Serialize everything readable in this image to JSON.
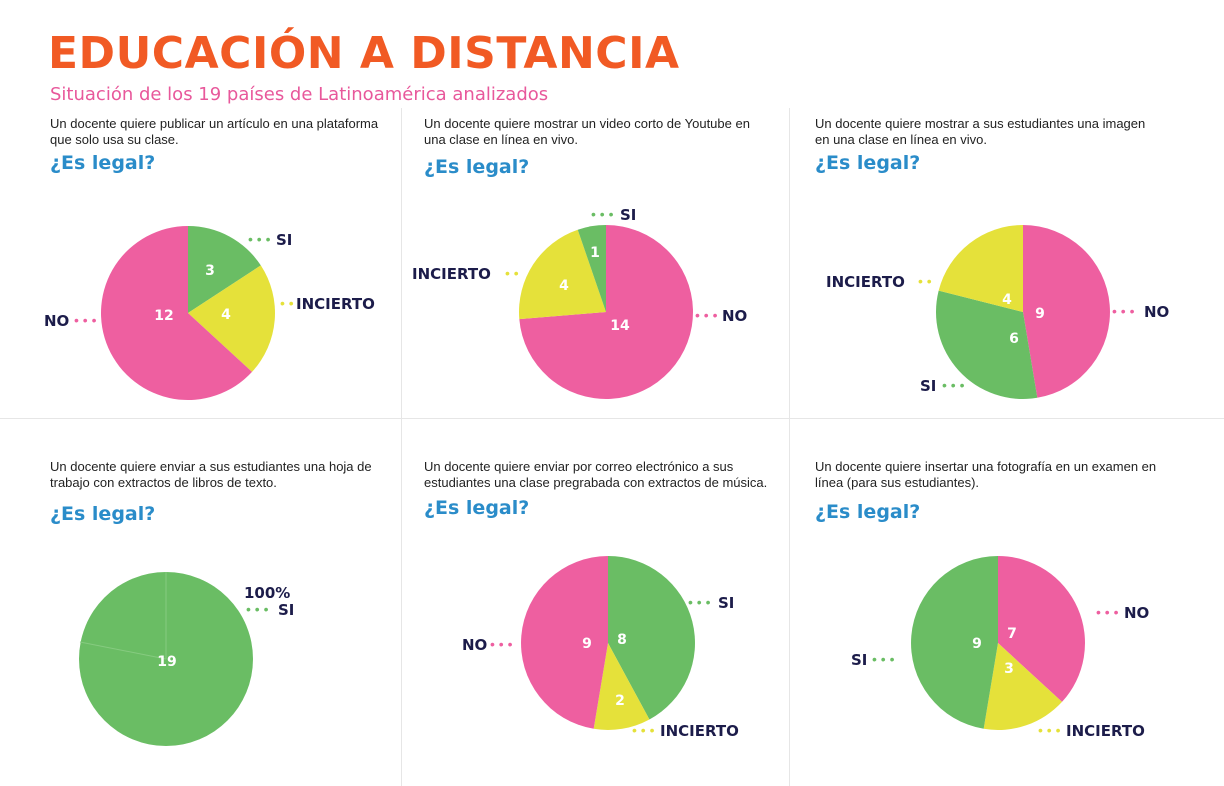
{
  "title": "EDUCACIÓN A DISTANCIA",
  "subtitle": "Situación de los 19 países de Latinoamérica analizados",
  "legal_label": "¿Es legal?",
  "colors": {
    "SI": "#6abd64",
    "NO": "#ee5fa0",
    "INCIERTO": "#e5e13a",
    "title": "#f15a24",
    "subtitle": "#e8589b",
    "question_heading": "#2a8cc9"
  },
  "chart_data": [
    {
      "type": "pie",
      "question": "Un docente quiere publicar un artículo en una plataforma que solo usa su clase.",
      "slices": [
        {
          "label": "SI",
          "value": 3
        },
        {
          "label": "INCIERTO",
          "value": 4
        },
        {
          "label": "NO",
          "value": 12
        }
      ]
    },
    {
      "type": "pie",
      "question": "Un docente quiere mostrar un video corto de Youtube en una clase en línea en vivo.",
      "slices": [
        {
          "label": "NO",
          "value": 14
        },
        {
          "label": "INCIERTO",
          "value": 4
        },
        {
          "label": "SI",
          "value": 1
        }
      ]
    },
    {
      "type": "pie",
      "question": "Un docente quiere mostrar a sus estudiantes una imagen en una clase en línea en vivo.",
      "slices": [
        {
          "label": "NO",
          "value": 9
        },
        {
          "label": "SI",
          "value": 6
        },
        {
          "label": "INCIERTO",
          "value": 4
        }
      ]
    },
    {
      "type": "pie",
      "question": "Un docente quiere enviar a sus estudiantes una hoja de trabajo con extractos de libros de texto.",
      "slices": [
        {
          "label": "SI",
          "value": 19
        }
      ],
      "annotation": "100%"
    },
    {
      "type": "pie",
      "question": "Un docente quiere enviar por correo electrónico a sus estudiantes una clase pregrabada con extractos de música.",
      "slices": [
        {
          "label": "SI",
          "value": 8
        },
        {
          "label": "INCIERTO",
          "value": 2
        },
        {
          "label": "NO",
          "value": 9
        }
      ]
    },
    {
      "type": "pie",
      "question": "Un docente quiere insertar una fotografía en un examen en línea (para sus estudiantes).",
      "slices": [
        {
          "label": "NO",
          "value": 7
        },
        {
          "label": "INCIERTO",
          "value": 3
        },
        {
          "label": "SI",
          "value": 9
        }
      ]
    }
  ]
}
